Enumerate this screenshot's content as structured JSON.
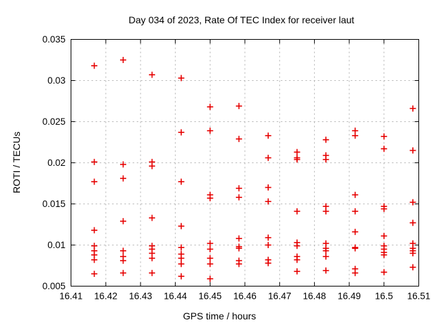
{
  "page": {
    "background": "#ffffff"
  },
  "chart_data": {
    "type": "scatter",
    "title": "Day 034 of 2023, Rate Of TEC Index for receiver laut",
    "xlabel": "GPS time / hours",
    "ylabel": "ROTI / TECUs",
    "xlim": [
      16.41,
      16.51
    ],
    "ylim": [
      0.005,
      0.035
    ],
    "x_ticks": [
      16.41,
      16.42,
      16.43,
      16.44,
      16.45,
      16.46,
      16.47,
      16.48,
      16.49,
      16.5,
      16.51
    ],
    "x_tick_labels": [
      "16.41",
      "16.42",
      "16.43",
      "16.44",
      "16.45",
      "16.46",
      "16.47",
      "16.48",
      "16.49",
      "16.5",
      "16.51"
    ],
    "y_ticks": [
      0.005,
      0.01,
      0.015,
      0.02,
      0.025,
      0.03,
      0.035
    ],
    "y_tick_labels": [
      "0.005",
      "0.01",
      "0.015",
      "0.02",
      "0.025",
      "0.03",
      "0.035"
    ],
    "grid": true,
    "grid_style": "dashed",
    "legend": false,
    "axis_color": "#000000",
    "grid_color": "#b0b0b0",
    "marker": {
      "shape": "plus",
      "color": "#e60000",
      "size": 9,
      "stroke_width": 1.6
    },
    "series": [
      {
        "name": "ROTI",
        "points": [
          [
            16.4167,
            0.0318
          ],
          [
            16.4167,
            0.0201
          ],
          [
            16.4167,
            0.0177
          ],
          [
            16.4167,
            0.0118
          ],
          [
            16.4167,
            0.0099
          ],
          [
            16.4167,
            0.0093
          ],
          [
            16.4167,
            0.0088
          ],
          [
            16.4167,
            0.0082
          ],
          [
            16.4167,
            0.0065
          ],
          [
            16.425,
            0.0325
          ],
          [
            16.425,
            0.0198
          ],
          [
            16.425,
            0.0181
          ],
          [
            16.425,
            0.0129
          ],
          [
            16.425,
            0.0093
          ],
          [
            16.425,
            0.0086
          ],
          [
            16.425,
            0.0081
          ],
          [
            16.425,
            0.0066
          ],
          [
            16.4333,
            0.0307
          ],
          [
            16.4333,
            0.0201
          ],
          [
            16.4333,
            0.0196
          ],
          [
            16.4333,
            0.0133
          ],
          [
            16.4333,
            0.0099
          ],
          [
            16.4333,
            0.0095
          ],
          [
            16.4333,
            0.009
          ],
          [
            16.4333,
            0.0084
          ],
          [
            16.4333,
            0.0066
          ],
          [
            16.4417,
            0.0303
          ],
          [
            16.4417,
            0.0237
          ],
          [
            16.4417,
            0.0177
          ],
          [
            16.4417,
            0.0123
          ],
          [
            16.4417,
            0.0097
          ],
          [
            16.4417,
            0.0089
          ],
          [
            16.4417,
            0.0084
          ],
          [
            16.4417,
            0.0077
          ],
          [
            16.4417,
            0.0062
          ],
          [
            16.45,
            0.0268
          ],
          [
            16.45,
            0.0239
          ],
          [
            16.45,
            0.0161
          ],
          [
            16.45,
            0.0157
          ],
          [
            16.45,
            0.0102
          ],
          [
            16.45,
            0.0095
          ],
          [
            16.45,
            0.0084
          ],
          [
            16.45,
            0.0077
          ],
          [
            16.45,
            0.0059
          ],
          [
            16.4583,
            0.0269
          ],
          [
            16.4583,
            0.0229
          ],
          [
            16.4583,
            0.0169
          ],
          [
            16.4583,
            0.0158
          ],
          [
            16.4583,
            0.0108
          ],
          [
            16.4583,
            0.0098
          ],
          [
            16.4583,
            0.0096
          ],
          [
            16.4583,
            0.0081
          ],
          [
            16.4583,
            0.0077
          ],
          [
            16.4667,
            0.0233
          ],
          [
            16.4667,
            0.0206
          ],
          [
            16.4667,
            0.017
          ],
          [
            16.4667,
            0.0153
          ],
          [
            16.4667,
            0.0109
          ],
          [
            16.4667,
            0.01
          ],
          [
            16.4667,
            0.0082
          ],
          [
            16.4667,
            0.0078
          ],
          [
            16.475,
            0.0213
          ],
          [
            16.475,
            0.0206
          ],
          [
            16.475,
            0.0204
          ],
          [
            16.475,
            0.0141
          ],
          [
            16.475,
            0.0103
          ],
          [
            16.475,
            0.0099
          ],
          [
            16.475,
            0.0086
          ],
          [
            16.475,
            0.0082
          ],
          [
            16.475,
            0.0068
          ],
          [
            16.4833,
            0.0228
          ],
          [
            16.4833,
            0.0209
          ],
          [
            16.4833,
            0.0204
          ],
          [
            16.4833,
            0.0147
          ],
          [
            16.4833,
            0.0141
          ],
          [
            16.4833,
            0.0102
          ],
          [
            16.4833,
            0.0096
          ],
          [
            16.4833,
            0.0093
          ],
          [
            16.4833,
            0.0086
          ],
          [
            16.4833,
            0.0069
          ],
          [
            16.4917,
            0.0239
          ],
          [
            16.4917,
            0.0233
          ],
          [
            16.4917,
            0.0161
          ],
          [
            16.4917,
            0.0141
          ],
          [
            16.4917,
            0.0116
          ],
          [
            16.4917,
            0.0097
          ],
          [
            16.4917,
            0.0096
          ],
          [
            16.4917,
            0.0071
          ],
          [
            16.4917,
            0.0066
          ],
          [
            16.5,
            0.0232
          ],
          [
            16.5,
            0.0217
          ],
          [
            16.5,
            0.0147
          ],
          [
            16.5,
            0.0144
          ],
          [
            16.5,
            0.0111
          ],
          [
            16.5,
            0.0099
          ],
          [
            16.5,
            0.0095
          ],
          [
            16.5,
            0.0091
          ],
          [
            16.5,
            0.0088
          ],
          [
            16.5,
            0.0067
          ],
          [
            16.5083,
            0.0266
          ],
          [
            16.5083,
            0.0215
          ],
          [
            16.5083,
            0.0152
          ],
          [
            16.5083,
            0.0127
          ],
          [
            16.5083,
            0.0102
          ],
          [
            16.5083,
            0.0096
          ],
          [
            16.5083,
            0.0093
          ],
          [
            16.5083,
            0.009
          ],
          [
            16.5083,
            0.0073
          ]
        ]
      }
    ]
  }
}
